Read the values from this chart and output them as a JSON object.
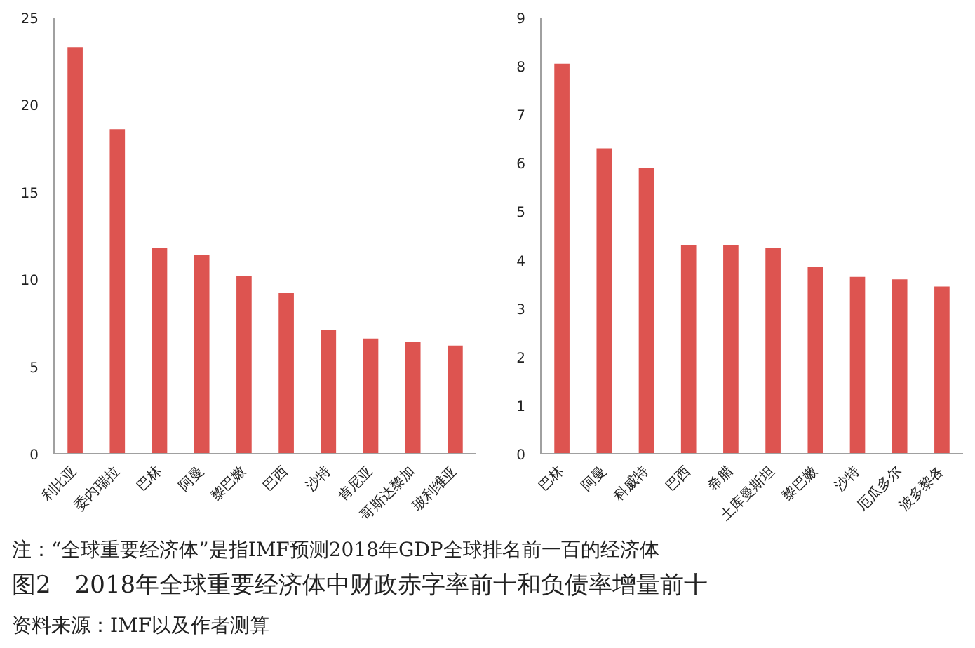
{
  "chart_data": [
    {
      "type": "bar",
      "title": "图2　2018年全球重要经济体中财政赤字率前十和负债率增量前十",
      "annotations": [
        "注：“全球重要经济体”是指IMF预测2018年GDP全球排名前一百的经济体",
        "资料来源：IMF以及作者测算"
      ],
      "categories": [
        "利比亚",
        "委内瑞拉",
        "巴林",
        "阿曼",
        "黎巴嫩",
        "巴西",
        "沙特",
        "肯尼亚",
        "哥斯达黎加",
        "玻利维亚"
      ],
      "values": [
        23.3,
        18.6,
        11.8,
        11.4,
        10.2,
        9.2,
        7.1,
        6.6,
        6.4,
        6.2
      ],
      "color": "#dd5450",
      "ylim": [
        0,
        25
      ],
      "yticks": [
        0,
        5,
        10,
        15,
        20,
        25
      ],
      "grid": false
    },
    {
      "type": "bar",
      "categories": [
        "巴林",
        "阿曼",
        "科威特",
        "巴西",
        "希腊",
        "土库曼斯坦",
        "黎巴嫩",
        "沙特",
        "厄瓜多尔",
        "波多黎各"
      ],
      "values": [
        8.05,
        6.3,
        5.9,
        4.3,
        4.3,
        4.25,
        3.85,
        3.65,
        3.6,
        3.45
      ],
      "color": "#dd5450",
      "ylim": [
        0,
        9
      ],
      "yticks": [
        0,
        1,
        2,
        3,
        4,
        5,
        6,
        7,
        8,
        9
      ],
      "grid": false
    }
  ]
}
